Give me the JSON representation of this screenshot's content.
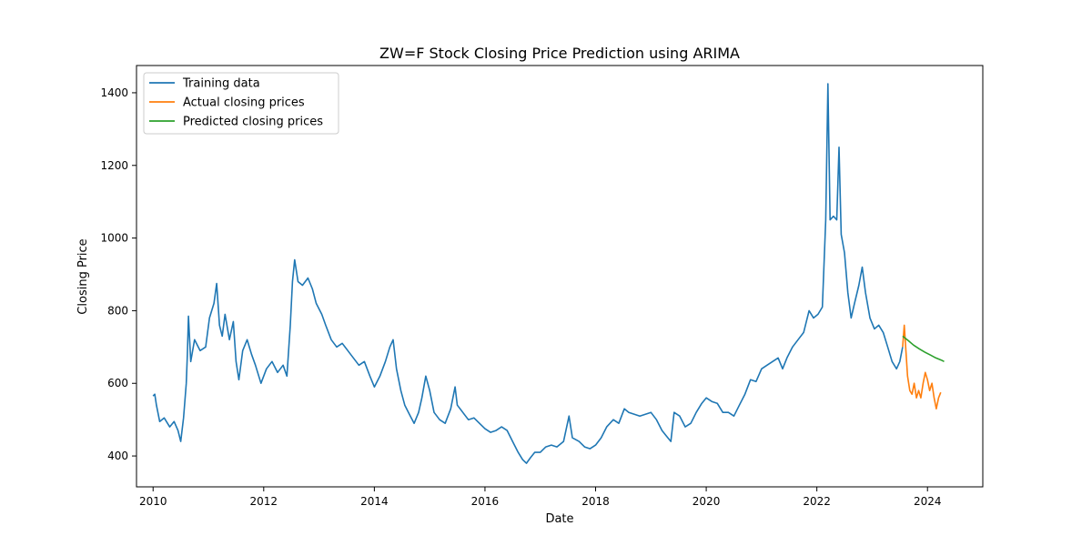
{
  "chart_data": {
    "type": "line",
    "title": "ZW=F Stock Closing Price Prediction using ARIMA",
    "xlabel": "Date",
    "ylabel": "Closing Price",
    "xlim": [
      2009.7,
      2025.0
    ],
    "ylim": [
      315,
      1475
    ],
    "x_ticks": [
      2010,
      2012,
      2014,
      2016,
      2018,
      2020,
      2022,
      2024
    ],
    "x_tick_labels": [
      "2010",
      "2012",
      "2014",
      "2016",
      "2018",
      "2020",
      "2022",
      "2024"
    ],
    "y_ticks": [
      400,
      600,
      800,
      1000,
      1200,
      1400
    ],
    "y_tick_labels": [
      "400",
      "600",
      "800",
      "1000",
      "1200",
      "1400"
    ],
    "grid": false,
    "legend_position": "top-left",
    "series": [
      {
        "name": "Training data",
        "color": "#1f77b4",
        "points": [
          [
            2010.0,
            565
          ],
          [
            2010.03,
            570
          ],
          [
            2010.06,
            540
          ],
          [
            2010.12,
            495
          ],
          [
            2010.2,
            505
          ],
          [
            2010.3,
            480
          ],
          [
            2010.38,
            495
          ],
          [
            2010.45,
            470
          ],
          [
            2010.5,
            440
          ],
          [
            2010.55,
            505
          ],
          [
            2010.6,
            600
          ],
          [
            2010.62,
            680
          ],
          [
            2010.64,
            785
          ],
          [
            2010.68,
            660
          ],
          [
            2010.75,
            720
          ],
          [
            2010.85,
            690
          ],
          [
            2010.95,
            700
          ],
          [
            2011.02,
            780
          ],
          [
            2011.1,
            820
          ],
          [
            2011.15,
            875
          ],
          [
            2011.2,
            760
          ],
          [
            2011.25,
            730
          ],
          [
            2011.3,
            790
          ],
          [
            2011.38,
            720
          ],
          [
            2011.45,
            770
          ],
          [
            2011.5,
            660
          ],
          [
            2011.55,
            610
          ],
          [
            2011.62,
            690
          ],
          [
            2011.7,
            720
          ],
          [
            2011.78,
            680
          ],
          [
            2011.85,
            650
          ],
          [
            2011.95,
            600
          ],
          [
            2012.05,
            640
          ],
          [
            2012.15,
            660
          ],
          [
            2012.25,
            630
          ],
          [
            2012.35,
            650
          ],
          [
            2012.42,
            620
          ],
          [
            2012.48,
            760
          ],
          [
            2012.52,
            880
          ],
          [
            2012.56,
            940
          ],
          [
            2012.62,
            880
          ],
          [
            2012.7,
            870
          ],
          [
            2012.8,
            890
          ],
          [
            2012.88,
            860
          ],
          [
            2012.95,
            820
          ],
          [
            2013.05,
            790
          ],
          [
            2013.12,
            760
          ],
          [
            2013.22,
            720
          ],
          [
            2013.32,
            700
          ],
          [
            2013.42,
            710
          ],
          [
            2013.52,
            690
          ],
          [
            2013.62,
            670
          ],
          [
            2013.72,
            650
          ],
          [
            2013.82,
            660
          ],
          [
            2013.92,
            620
          ],
          [
            2014.0,
            590
          ],
          [
            2014.1,
            620
          ],
          [
            2014.2,
            660
          ],
          [
            2014.28,
            700
          ],
          [
            2014.34,
            720
          ],
          [
            2014.4,
            640
          ],
          [
            2014.48,
            580
          ],
          [
            2014.55,
            540
          ],
          [
            2014.65,
            510
          ],
          [
            2014.72,
            490
          ],
          [
            2014.8,
            520
          ],
          [
            2014.86,
            560
          ],
          [
            2014.93,
            620
          ],
          [
            2015.0,
            580
          ],
          [
            2015.08,
            520
          ],
          [
            2015.18,
            500
          ],
          [
            2015.28,
            490
          ],
          [
            2015.38,
            530
          ],
          [
            2015.46,
            590
          ],
          [
            2015.5,
            540
          ],
          [
            2015.6,
            520
          ],
          [
            2015.7,
            500
          ],
          [
            2015.8,
            505
          ],
          [
            2015.9,
            490
          ],
          [
            2016.0,
            475
          ],
          [
            2016.1,
            465
          ],
          [
            2016.2,
            470
          ],
          [
            2016.3,
            480
          ],
          [
            2016.4,
            470
          ],
          [
            2016.5,
            440
          ],
          [
            2016.6,
            410
          ],
          [
            2016.68,
            390
          ],
          [
            2016.75,
            380
          ],
          [
            2016.82,
            395
          ],
          [
            2016.9,
            410
          ],
          [
            2017.0,
            410
          ],
          [
            2017.1,
            425
          ],
          [
            2017.2,
            430
          ],
          [
            2017.3,
            425
          ],
          [
            2017.42,
            440
          ],
          [
            2017.52,
            510
          ],
          [
            2017.58,
            450
          ],
          [
            2017.7,
            440
          ],
          [
            2017.8,
            425
          ],
          [
            2017.9,
            420
          ],
          [
            2018.0,
            430
          ],
          [
            2018.1,
            450
          ],
          [
            2018.2,
            480
          ],
          [
            2018.32,
            500
          ],
          [
            2018.42,
            490
          ],
          [
            2018.52,
            530
          ],
          [
            2018.6,
            520
          ],
          [
            2018.7,
            515
          ],
          [
            2018.8,
            510
          ],
          [
            2018.9,
            515
          ],
          [
            2019.0,
            520
          ],
          [
            2019.1,
            500
          ],
          [
            2019.2,
            470
          ],
          [
            2019.28,
            455
          ],
          [
            2019.36,
            440
          ],
          [
            2019.42,
            520
          ],
          [
            2019.52,
            510
          ],
          [
            2019.62,
            480
          ],
          [
            2019.72,
            490
          ],
          [
            2019.82,
            520
          ],
          [
            2019.92,
            545
          ],
          [
            2020.0,
            560
          ],
          [
            2020.1,
            550
          ],
          [
            2020.2,
            545
          ],
          [
            2020.3,
            520
          ],
          [
            2020.4,
            520
          ],
          [
            2020.5,
            510
          ],
          [
            2020.6,
            540
          ],
          [
            2020.7,
            570
          ],
          [
            2020.8,
            610
          ],
          [
            2020.9,
            605
          ],
          [
            2021.0,
            640
          ],
          [
            2021.1,
            650
          ],
          [
            2021.2,
            660
          ],
          [
            2021.3,
            670
          ],
          [
            2021.38,
            640
          ],
          [
            2021.46,
            670
          ],
          [
            2021.56,
            700
          ],
          [
            2021.66,
            720
          ],
          [
            2021.76,
            740
          ],
          [
            2021.86,
            800
          ],
          [
            2021.94,
            780
          ],
          [
            2022.02,
            790
          ],
          [
            2022.1,
            810
          ],
          [
            2022.16,
            1050
          ],
          [
            2022.2,
            1425
          ],
          [
            2022.24,
            1050
          ],
          [
            2022.3,
            1060
          ],
          [
            2022.36,
            1050
          ],
          [
            2022.4,
            1250
          ],
          [
            2022.44,
            1010
          ],
          [
            2022.5,
            960
          ],
          [
            2022.56,
            850
          ],
          [
            2022.62,
            780
          ],
          [
            2022.68,
            820
          ],
          [
            2022.76,
            870
          ],
          [
            2022.82,
            920
          ],
          [
            2022.88,
            850
          ],
          [
            2022.96,
            780
          ],
          [
            2023.04,
            750
          ],
          [
            2023.12,
            760
          ],
          [
            2023.2,
            740
          ],
          [
            2023.28,
            700
          ],
          [
            2023.36,
            660
          ],
          [
            2023.44,
            640
          ],
          [
            2023.5,
            660
          ],
          [
            2023.55,
            700
          ]
        ]
      },
      {
        "name": "Actual closing prices",
        "color": "#ff7f0e",
        "points": [
          [
            2023.55,
            700
          ],
          [
            2023.58,
            760
          ],
          [
            2023.61,
            690
          ],
          [
            2023.64,
            620
          ],
          [
            2023.68,
            580
          ],
          [
            2023.72,
            570
          ],
          [
            2023.76,
            600
          ],
          [
            2023.8,
            560
          ],
          [
            2023.84,
            580
          ],
          [
            2023.88,
            560
          ],
          [
            2023.92,
            600
          ],
          [
            2023.96,
            630
          ],
          [
            2024.0,
            610
          ],
          [
            2024.04,
            580
          ],
          [
            2024.08,
            600
          ],
          [
            2024.12,
            560
          ],
          [
            2024.16,
            530
          ],
          [
            2024.2,
            560
          ],
          [
            2024.24,
            575
          ]
        ]
      },
      {
        "name": "Predicted closing prices",
        "color": "#2ca02c",
        "points": [
          [
            2023.55,
            730
          ],
          [
            2023.65,
            718
          ],
          [
            2023.75,
            705
          ],
          [
            2023.85,
            695
          ],
          [
            2023.95,
            686
          ],
          [
            2024.05,
            678
          ],
          [
            2024.15,
            670
          ],
          [
            2024.25,
            664
          ],
          [
            2024.3,
            660
          ]
        ]
      }
    ]
  }
}
